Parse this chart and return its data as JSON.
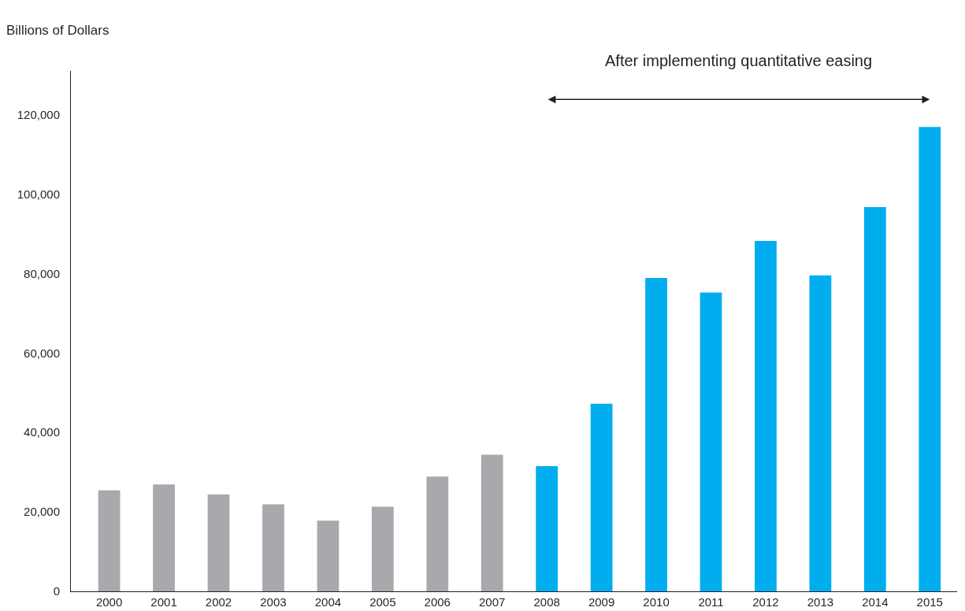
{
  "chart_data": {
    "type": "bar",
    "ylabel": "Billions of Dollars",
    "annotations": [
      "After implementing quantitative easing"
    ],
    "categories": [
      "2000",
      "2001",
      "2002",
      "2003",
      "2004",
      "2005",
      "2006",
      "2007",
      "2008",
      "2009",
      "2010",
      "2011",
      "2012",
      "2013",
      "2014",
      "2015"
    ],
    "values": [
      25400,
      26900,
      24400,
      21900,
      17800,
      21300,
      28900,
      34400,
      31500,
      47200,
      78900,
      75200,
      88200,
      79500,
      96700,
      116900
    ],
    "colors": [
      "#a7a9ac",
      "#a7a9ac",
      "#a7a9ac",
      "#a7a9ac",
      "#a7a9ac",
      "#a7a9ac",
      "#a7a9ac",
      "#a7a9ac",
      "#00aeef",
      "#00aeef",
      "#00aeef",
      "#00aeef",
      "#00aeef",
      "#00aeef",
      "#00aeef",
      "#00aeef"
    ],
    "ylim": [
      0,
      131000
    ],
    "yticks": [
      0,
      {
        "value": 20000,
        "label": "20,000"
      },
      {
        "value": 40000,
        "label": "40,000"
      },
      {
        "value": 60000,
        "label": "60,000"
      },
      {
        "value": 80000,
        "label": "80,000"
      },
      {
        "value": 100000,
        "label": "100,000"
      },
      {
        "value": 120000,
        "label": "120,000"
      }
    ],
    "grid": false,
    "legend": false
  }
}
